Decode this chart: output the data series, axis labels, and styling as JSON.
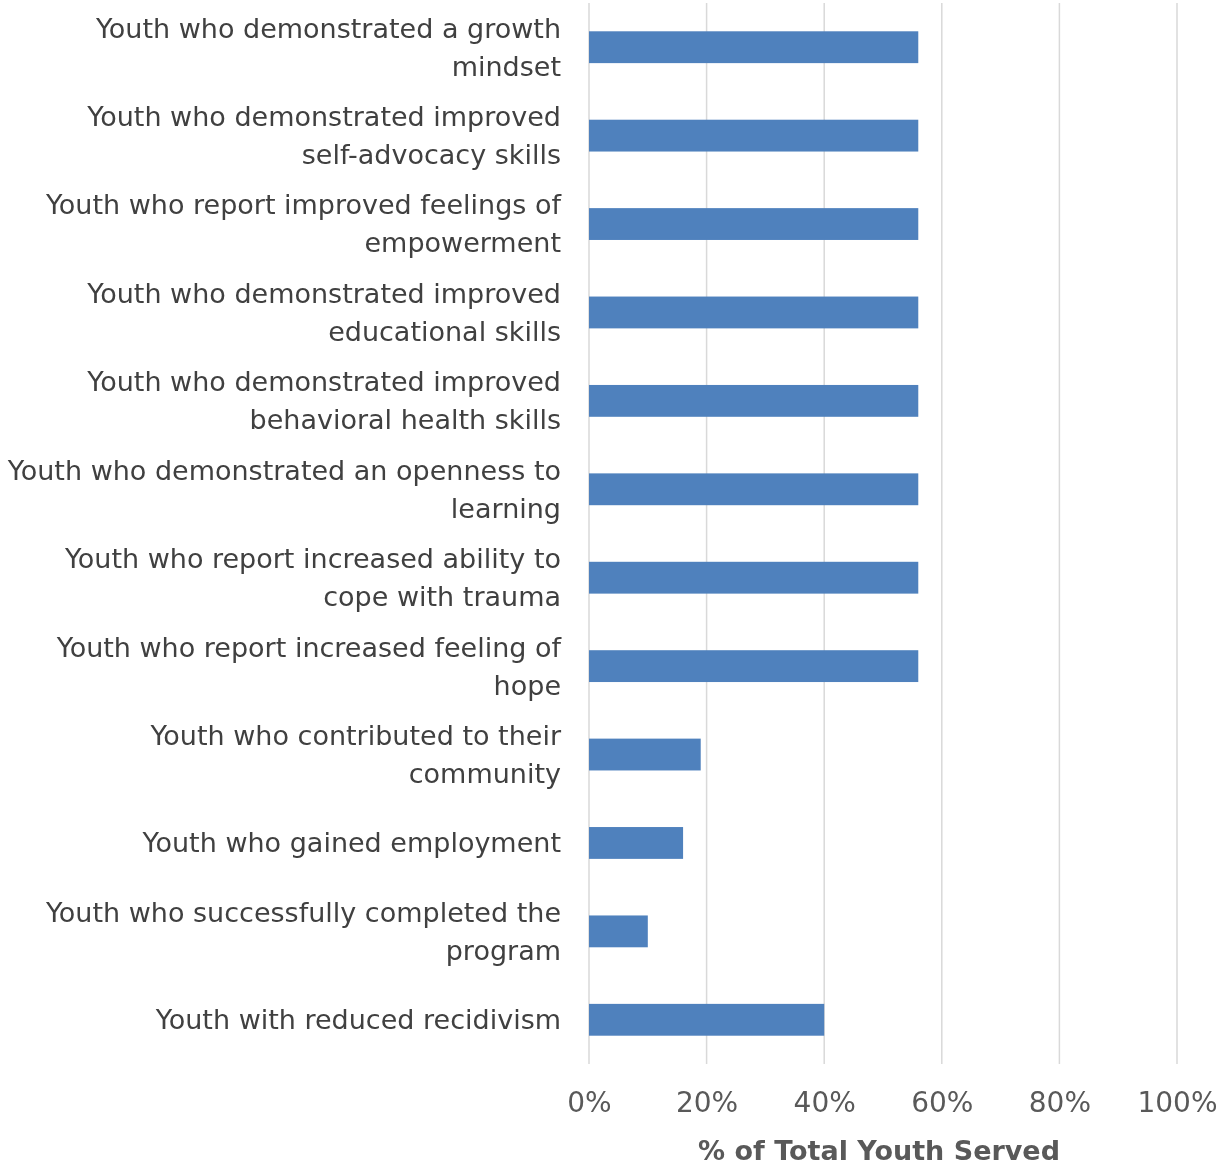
{
  "chart_data": {
    "type": "bar",
    "orientation": "horizontal",
    "categories": [
      "Youth who demonstrated a growth mindset",
      "Youth who demonstrated improved self-advocacy skills",
      "Youth who report improved feelings of empowerment",
      "Youth who demonstrated improved educational skills",
      "Youth who demonstrated improved behavioral health skills",
      "Youth who demonstrated an openness to learning",
      "Youth who report increased ability to cope with trauma",
      "Youth who report increased feeling of hope",
      "Youth who contributed to their community",
      "Youth who gained employment",
      "Youth who successfully completed the program",
      "Youth with reduced recidivism"
    ],
    "values": [
      56,
      56,
      56,
      56,
      56,
      56,
      56,
      56,
      19,
      16,
      10,
      40
    ],
    "color": "#4f81bd",
    "xlim": [
      0,
      100
    ],
    "xticks": [
      {
        "value": 0,
        "label": "0%"
      },
      {
        "value": 20,
        "label": "20%"
      },
      {
        "value": 40,
        "label": "40%"
      },
      {
        "value": 60,
        "label": "60%"
      },
      {
        "value": 80,
        "label": "80%"
      },
      {
        "value": 100,
        "label": "100%"
      }
    ],
    "xlabel": "% of Total Youth Served",
    "grid": "x"
  }
}
